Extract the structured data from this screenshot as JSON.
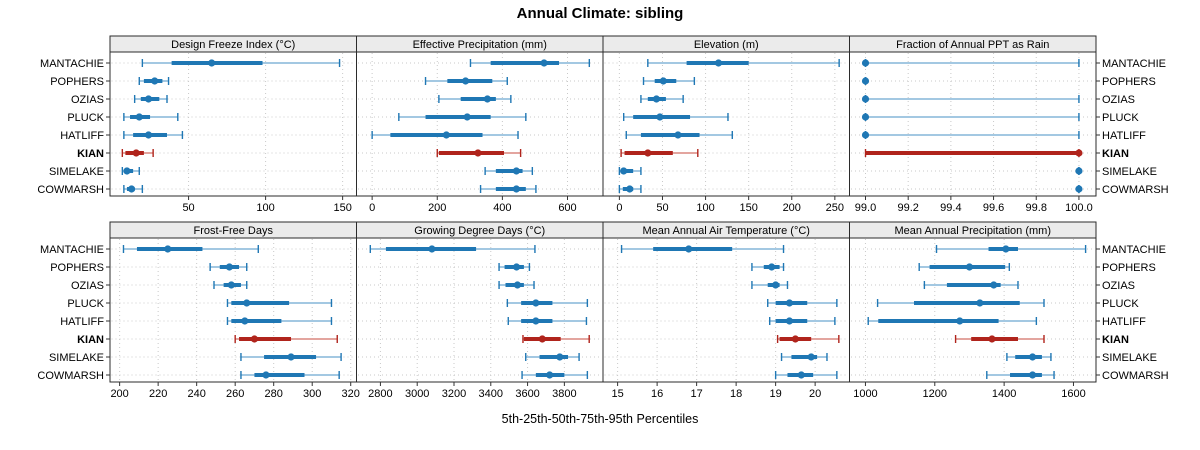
{
  "title": "Annual Climate: sibling",
  "caption": "5th-25th-50th-75th-95th Percentiles",
  "sites": [
    "MANTACHIE",
    "POPHERS",
    "OZIAS",
    "PLUCK",
    "HATLIFF",
    "KIAN",
    "SIMELAKE",
    "COWMARSH"
  ],
  "highlight_site": "KIAN",
  "colors": {
    "blue": "#1f77b4",
    "blue_light": "#a3c8e2",
    "red": "#b0241c",
    "red_light": "#e3a59f",
    "header_bg": "#ebebeb",
    "border": "#2b2b2b",
    "grid": "#c9c9c9",
    "tick": "#333333",
    "text": "#000000"
  },
  "chart_data": {
    "type": "dot-plot-percentile-trellis",
    "percentiles": [
      "5th",
      "25th",
      "50th",
      "75th",
      "95th"
    ],
    "grid": "dotted",
    "legend": "none",
    "xlabel": "5th-25th-50th-75th-95th Percentiles",
    "categories": [
      "MANTACHIE",
      "POPHERS",
      "OZIAS",
      "PLUCK",
      "HATLIFF",
      "KIAN",
      "SIMELAKE",
      "COWMARSH"
    ],
    "panels": [
      {
        "title": "Design Freeze Index (°C)",
        "xlim": [
          -1,
          159
        ],
        "ticks": [
          50,
          100,
          150
        ],
        "tick_labels": [
          "50",
          "100",
          "150"
        ],
        "values": [
          [
            20,
            39,
            65,
            98,
            148
          ],
          [
            18,
            21,
            28,
            33,
            37
          ],
          [
            15,
            19,
            24,
            31,
            36
          ],
          [
            8,
            12,
            18,
            25,
            43
          ],
          [
            8,
            14,
            24,
            36,
            46
          ],
          [
            7,
            9,
            16,
            21,
            27
          ],
          [
            7,
            8,
            10,
            14,
            18
          ],
          [
            8,
            10,
            13,
            15,
            20
          ]
        ]
      },
      {
        "title": "Effective Precipitation (mm)",
        "xlim": [
          -48,
          709
        ],
        "ticks": [
          0,
          200,
          400,
          600
        ],
        "tick_labels": [
          "0",
          "200",
          "400",
          "600"
        ],
        "values": [
          [
            302,
            364,
            528,
            574,
            667
          ],
          [
            164,
            231,
            287,
            369,
            415
          ],
          [
            205,
            272,
            354,
            380,
            426
          ],
          [
            82,
            164,
            292,
            364,
            472
          ],
          [
            0,
            56,
            228,
            339,
            448
          ],
          [
            200,
            205,
            325,
            405,
            456
          ],
          [
            347,
            380,
            443,
            462,
            492
          ],
          [
            333,
            380,
            443,
            472,
            503
          ]
        ]
      },
      {
        "title": "Elevation (m)",
        "xlim": [
          -19,
          267
        ],
        "ticks": [
          0,
          50,
          100,
          150,
          200,
          250
        ],
        "tick_labels": [
          "0",
          "50",
          "100",
          "150",
          "200",
          "250"
        ],
        "values": [
          [
            33,
            78,
            115,
            150,
            255
          ],
          [
            28,
            41,
            51,
            66,
            87
          ],
          [
            25,
            33,
            43,
            54,
            74
          ],
          [
            5,
            16,
            47,
            82,
            126
          ],
          [
            8,
            25,
            68,
            93,
            131
          ],
          [
            2,
            6,
            33,
            62,
            91
          ],
          [
            0,
            2,
            5,
            16,
            25
          ],
          [
            0,
            4,
            12,
            16,
            25
          ]
        ]
      },
      {
        "title": "Fraction of Annual PPT as Rain",
        "xlim": [
          98.925,
          100.08
        ],
        "ticks": [
          99.0,
          99.2,
          99.4,
          99.6,
          99.8,
          100.0
        ],
        "tick_labels": [
          "99.0",
          "99.2",
          "99.4",
          "99.6",
          "99.8",
          "100.0"
        ],
        "values": [
          [
            99.0,
            99.0,
            99.0,
            99.0,
            100.0
          ],
          [
            99.0,
            99.0,
            99.0,
            99.0,
            99.0
          ],
          [
            99.0,
            99.0,
            99.0,
            99.0,
            100.0
          ],
          [
            99.0,
            99.0,
            99.0,
            99.0,
            100.0
          ],
          [
            99.0,
            99.0,
            99.0,
            99.0,
            100.0
          ],
          [
            99.0,
            99.0,
            100.0,
            100.0,
            100.0
          ],
          [
            100.0,
            100.0,
            100.0,
            100.0,
            100.0
          ],
          [
            100.0,
            100.0,
            100.0,
            100.0,
            100.0
          ]
        ]
      },
      {
        "title": "Frost-Free Days",
        "xlim": [
          195,
          323
        ],
        "ticks": [
          200,
          220,
          240,
          260,
          280,
          300,
          320
        ],
        "tick_labels": [
          "200",
          "220",
          "240",
          "260",
          "280",
          "300",
          "320"
        ],
        "values": [
          [
            202,
            209,
            225,
            243,
            272
          ],
          [
            247,
            252,
            257,
            262,
            266
          ],
          [
            249,
            254,
            258,
            263,
            266
          ],
          [
            256,
            258,
            266,
            288,
            310
          ],
          [
            256,
            258,
            265,
            284,
            310
          ],
          [
            260,
            262,
            270,
            289,
            313
          ],
          [
            263,
            275,
            289,
            302,
            315
          ],
          [
            263,
            270,
            276,
            296,
            314
          ]
        ]
      },
      {
        "title": "Growing Degree Days (°C)",
        "xlim": [
          2670,
          4010
        ],
        "ticks": [
          2800,
          3000,
          3200,
          3400,
          3600,
          3800
        ],
        "tick_labels": [
          "2800",
          "3000",
          "3200",
          "3400",
          "3600",
          "3800"
        ],
        "values": [
          [
            2745,
            2830,
            3080,
            3320,
            3640
          ],
          [
            3445,
            3475,
            3540,
            3580,
            3610
          ],
          [
            3445,
            3480,
            3545,
            3580,
            3635
          ],
          [
            3490,
            3565,
            3645,
            3735,
            3925
          ],
          [
            3495,
            3565,
            3645,
            3735,
            3920
          ],
          [
            3575,
            3580,
            3680,
            3780,
            3935
          ],
          [
            3590,
            3665,
            3775,
            3820,
            3880
          ],
          [
            3570,
            3645,
            3720,
            3800,
            3925
          ]
        ]
      },
      {
        "title": "Mean Annual Air Temperature (°C)",
        "xlim": [
          14.63,
          20.87
        ],
        "ticks": [
          15,
          16,
          17,
          18,
          19,
          20
        ],
        "tick_labels": [
          "15",
          "16",
          "17",
          "18",
          "19",
          "20"
        ],
        "values": [
          [
            15.1,
            15.9,
            16.8,
            17.9,
            19.2
          ],
          [
            18.4,
            18.7,
            18.9,
            19.1,
            19.2
          ],
          [
            18.4,
            18.8,
            19.0,
            19.1,
            19.3
          ],
          [
            18.8,
            19.0,
            19.35,
            19.8,
            20.55
          ],
          [
            18.85,
            19.0,
            19.35,
            19.8,
            20.5
          ],
          [
            19.05,
            19.1,
            19.5,
            19.9,
            20.6
          ],
          [
            19.15,
            19.4,
            19.9,
            20.05,
            20.3
          ],
          [
            19.0,
            19.3,
            19.65,
            19.95,
            20.55
          ]
        ]
      },
      {
        "title": "Mean Annual Precipitation (mm)",
        "xlim": [
          954,
          1665
        ],
        "ticks": [
          1000,
          1200,
          1400,
          1600
        ],
        "tick_labels": [
          "1000",
          "1200",
          "1400",
          "1600"
        ],
        "values": [
          [
            1205,
            1355,
            1405,
            1440,
            1635
          ],
          [
            1155,
            1185,
            1300,
            1403,
            1415
          ],
          [
            1170,
            1235,
            1370,
            1390,
            1440
          ],
          [
            1035,
            1140,
            1330,
            1445,
            1515
          ],
          [
            1008,
            1037,
            1272,
            1384,
            1493
          ],
          [
            1260,
            1305,
            1365,
            1440,
            1515
          ],
          [
            1408,
            1432,
            1482,
            1509,
            1535
          ],
          [
            1350,
            1417,
            1482,
            1509,
            1544
          ]
        ]
      }
    ]
  }
}
